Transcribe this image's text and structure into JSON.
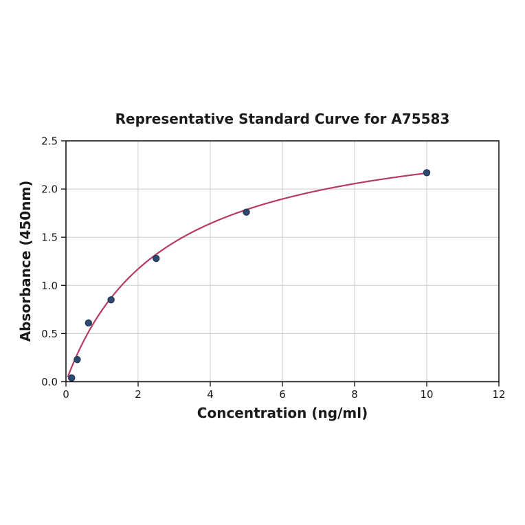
{
  "figure": {
    "background": "#ffffff"
  },
  "chart_data": {
    "type": "scatter",
    "title": "Representative Standard Curve for A75583",
    "xlabel": "Concentration (ng/ml)",
    "ylabel": "Absorbance (450nm)",
    "xlim": [
      0,
      12
    ],
    "ylim": [
      0,
      2.5
    ],
    "grid": true,
    "legend": "none",
    "xticks": [
      {
        "value": 0,
        "label": "0"
      },
      {
        "value": 2,
        "label": "2"
      },
      {
        "value": 4,
        "label": "4"
      },
      {
        "value": 6,
        "label": "6"
      },
      {
        "value": 8,
        "label": "8"
      },
      {
        "value": 10,
        "label": "10"
      },
      {
        "value": 12,
        "label": "12"
      }
    ],
    "yticks": [
      {
        "value": 0.0,
        "label": "0.0"
      },
      {
        "value": 0.5,
        "label": "0.5"
      },
      {
        "value": 1.0,
        "label": "1.0"
      },
      {
        "value": 1.5,
        "label": "1.5"
      },
      {
        "value": 2.0,
        "label": "2.0"
      },
      {
        "value": 2.5,
        "label": "2.5"
      }
    ],
    "series": [
      {
        "name": "fit-curve",
        "kind": "line",
        "model": "saturation y = a*x/(b+x)",
        "params": {
          "a": 2.75,
          "b": 2.7
        },
        "x_range": [
          0.055,
          10
        ],
        "color": "#b73a5f",
        "line_width": 2.2
      },
      {
        "name": "standard-points",
        "kind": "scatter",
        "x": [
          0.156,
          0.313,
          0.625,
          1.25,
          2.5,
          5,
          10
        ],
        "y": [
          0.04,
          0.23,
          0.61,
          0.85,
          1.28,
          1.76,
          2.17
        ],
        "marker_fill": "#2e4a72",
        "marker_edge": "#20334f",
        "marker_radius": 4.6
      }
    ],
    "colors": {
      "grid": "#cccccc",
      "axis": "#1a1a1a",
      "background": "#ffffff"
    }
  }
}
